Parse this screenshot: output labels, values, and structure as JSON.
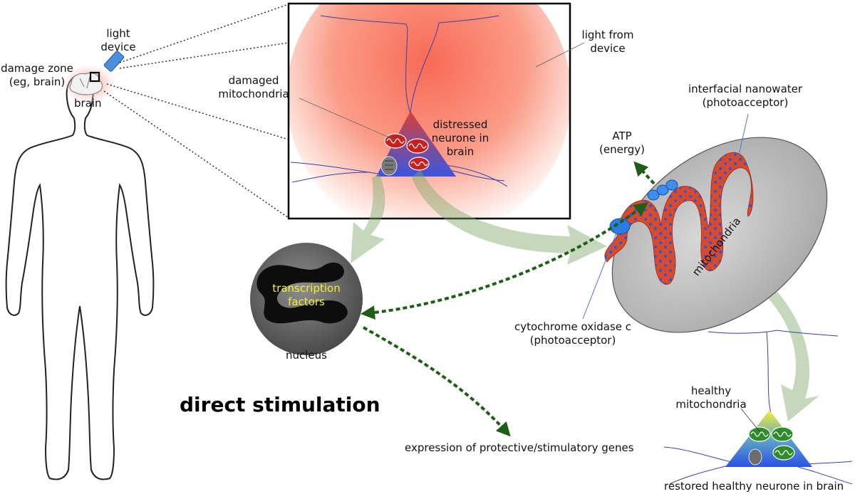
{
  "labels": {
    "light_device_1": "light",
    "light_device_2": "device",
    "damage_zone_1": "damage zone",
    "damage_zone_2": "(eg, brain)",
    "brain": "brain",
    "damaged_mito_1": "damaged",
    "damaged_mito_2": "mitochondria",
    "light_from_1": "light from",
    "light_from_2": "device",
    "distressed_1": "distressed",
    "distressed_2": "neurone in",
    "distressed_3": "brain",
    "nanowater_1": "interfacial nanowater",
    "nanowater_2": "(photoacceptor)",
    "atp_1": "ATP",
    "atp_2": "(energy)",
    "mitochondria": "mitochondria",
    "cytochrome_1": "cytochrome oxidase c",
    "cytochrome_2": "(photoacceptor)",
    "transcription_1": "transcription",
    "transcription_2": "factors",
    "nucleus": "nucleus",
    "heading": "direct stimulation",
    "expression": "expression of protective/stimulatory genes",
    "healthy_mito_1": "healthy",
    "healthy_mito_2": "mitochondria",
    "restored": "restored healthy neurone in brain"
  },
  "colors": {
    "light_glow": "#f86a55",
    "distressed_mitochondria": "#c8201f",
    "healthy_mitochondria": "#2e8c2a",
    "signal_arrow": "#1f5e16",
    "photoacceptor": "#2c7ae6",
    "transcription_text": "#f4ee2a"
  }
}
